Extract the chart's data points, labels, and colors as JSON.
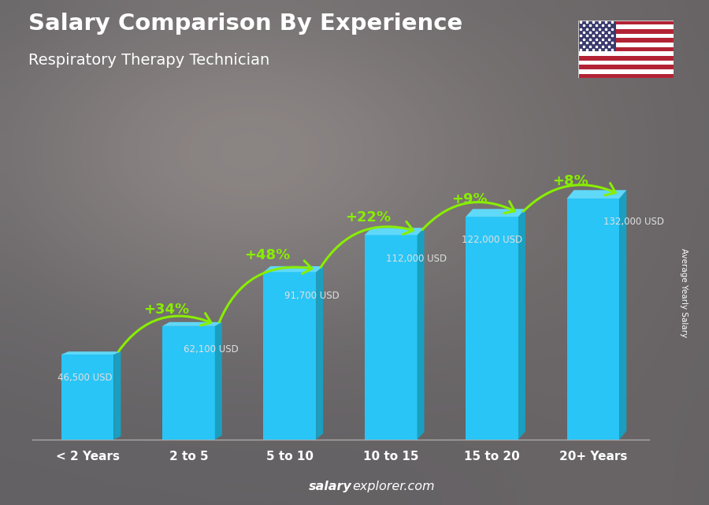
{
  "title": "Salary Comparison By Experience",
  "subtitle": "Respiratory Therapy Technician",
  "categories": [
    "< 2 Years",
    "2 to 5",
    "5 to 10",
    "10 to 15",
    "15 to 20",
    "20+ Years"
  ],
  "values": [
    46500,
    62100,
    91700,
    112000,
    122000,
    132000
  ],
  "labels": [
    "46,500 USD",
    "62,100 USD",
    "91,700 USD",
    "112,000 USD",
    "122,000 USD",
    "132,000 USD"
  ],
  "pct_changes": [
    "+34%",
    "+48%",
    "+22%",
    "+9%",
    "+8%"
  ],
  "bar_color_main": "#29c5f6",
  "bar_color_right": "#1a9fc0",
  "bar_color_top": "#60d8f8",
  "pct_color": "#88ee00",
  "label_color": "#e0e0e0",
  "title_color": "#ffffff",
  "subtitle_color": "#ffffff",
  "bg_color_left": "#7a8090",
  "bg_color_right": "#5a6070",
  "overlay_color": "#1a2030",
  "overlay_alpha": 0.38,
  "watermark_bold": "salary",
  "watermark_normal": "explorer.com",
  "ylabel": "Average Yearly Salary",
  "ylim": [
    0,
    155000
  ],
  "bar_width": 0.52,
  "flag_colors_red": "#B22234",
  "flag_colors_blue": "#3C3B6E"
}
